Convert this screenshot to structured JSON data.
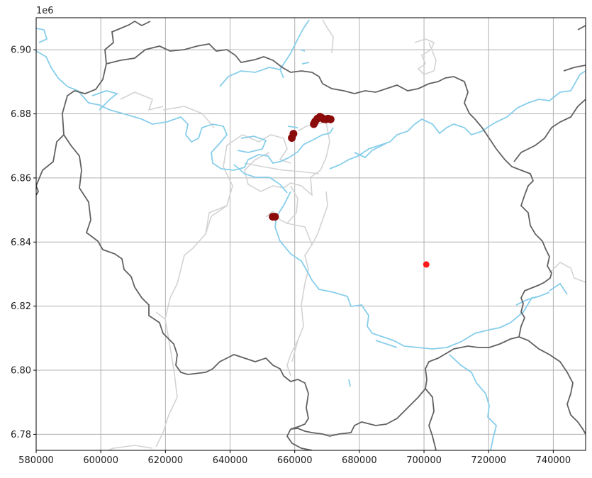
{
  "chart_data": {
    "type": "scatter",
    "title": "",
    "xlabel": "",
    "ylabel": "",
    "xlim": [
      580000,
      750000
    ],
    "ylim": [
      6775000,
      6910000
    ],
    "y_offset_label": "1e6",
    "x_ticks": [
      580000,
      600000,
      620000,
      640000,
      660000,
      680000,
      700000,
      720000,
      740000
    ],
    "x_tick_labels": [
      "580000",
      "600000",
      "620000",
      "640000",
      "660000",
      "680000",
      "700000",
      "720000",
      "740000"
    ],
    "y_ticks": [
      6780000,
      6800000,
      6820000,
      6840000,
      6860000,
      6880000,
      6900000
    ],
    "y_tick_labels": [
      "6.78",
      "6.80",
      "6.82",
      "6.84",
      "6.86",
      "6.88",
      "6.90"
    ],
    "grid": true,
    "series": [
      {
        "color": "#8b0a0a",
        "points": [
          [
            659100,
            6872500
          ],
          [
            659600,
            6873800
          ],
          [
            653200,
            6847900
          ],
          [
            653900,
            6847900
          ],
          [
            665900,
            6876800
          ],
          [
            666300,
            6877600
          ],
          [
            667000,
            6878500
          ],
          [
            667800,
            6879100
          ],
          [
            668300,
            6878800
          ],
          [
            668900,
            6878400
          ],
          [
            669600,
            6878300
          ],
          [
            670300,
            6878500
          ],
          [
            671100,
            6878300
          ]
        ]
      },
      {
        "color": "#ff1a1a",
        "points": [
          [
            700700,
            6833000
          ]
        ]
      }
    ],
    "layers": [
      {
        "kind": "rivers",
        "color": "#87ceeb"
      },
      {
        "kind": "department_borders",
        "color": "#616161"
      },
      {
        "kind": "commune_borders",
        "color": "#d3d3d3"
      }
    ]
  }
}
